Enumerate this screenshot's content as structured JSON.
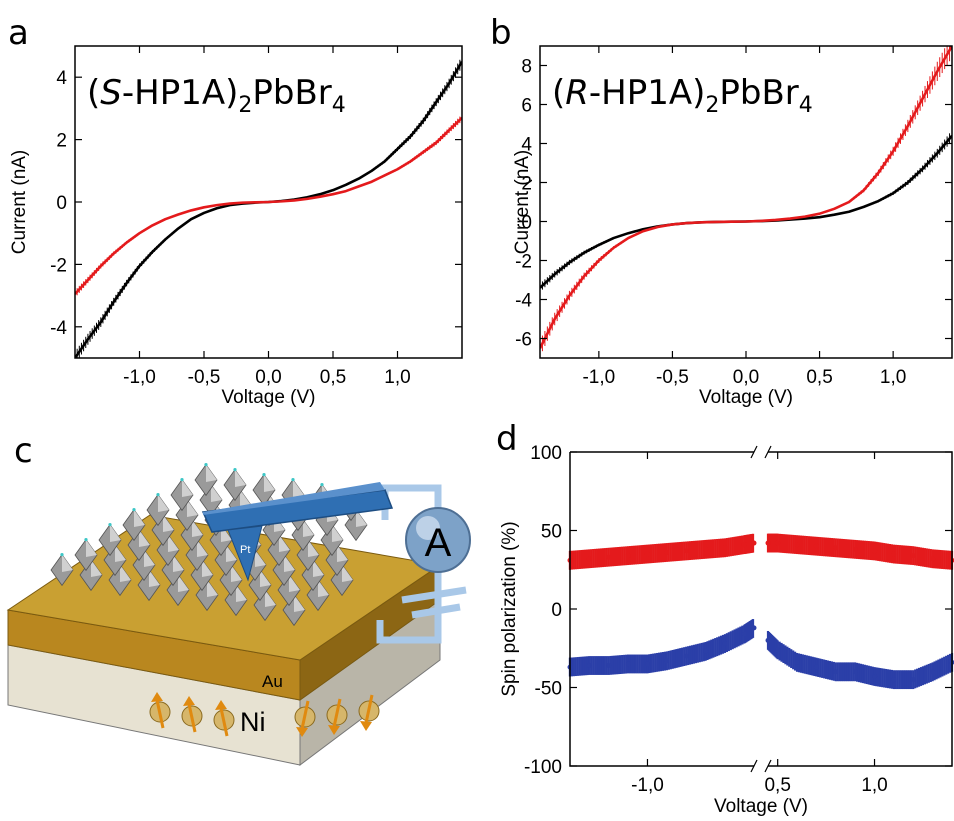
{
  "panels": {
    "a": "a",
    "b": "b",
    "c": "c",
    "d": "d"
  },
  "diagram": {
    "tip_label": "Pt",
    "meter_label": "A",
    "gold_label": "Au",
    "nickel_label": "Ni",
    "colors": {
      "gold": "#c9a032",
      "nickel": "#e7e2d2",
      "cantilever": "#2f6fb3",
      "wire": "#a9c8e8",
      "crystal": "#9a9a9a"
    }
  },
  "chart_data": [
    {
      "id": "a",
      "type": "line",
      "formula": {
        "prefix": "(",
        "italic": "S",
        "main": "-HP1A)",
        "sub1": "2",
        "mid": "PbBr",
        "sub2": "4"
      },
      "xlabel": "Voltage (V)",
      "ylabel": "Current (nA)",
      "xlim": [
        -1.5,
        1.5
      ],
      "ylim": [
        -5,
        5
      ],
      "xticks": [
        -1.0,
        -0.5,
        0.0,
        0.5,
        1.0
      ],
      "xtick_labels": [
        "-1,0",
        "-0,5",
        "0,0",
        "0,5",
        "1,0"
      ],
      "yticks": [
        -4,
        -2,
        0,
        2,
        4
      ],
      "ytick_labels": [
        "-4",
        "-2",
        "0",
        "2",
        "4"
      ],
      "error_bars": true,
      "series": [
        {
          "color": "#000000",
          "x": [
            -1.5,
            -1.4,
            -1.3,
            -1.2,
            -1.1,
            -1.0,
            -0.9,
            -0.8,
            -0.7,
            -0.6,
            -0.5,
            -0.4,
            -0.3,
            -0.2,
            -0.1,
            0.0,
            0.1,
            0.2,
            0.3,
            0.4,
            0.5,
            0.6,
            0.7,
            0.8,
            0.9,
            1.0,
            1.1,
            1.2,
            1.3,
            1.4,
            1.5
          ],
          "y": [
            -5.0,
            -4.4,
            -3.85,
            -3.2,
            -2.6,
            -2.05,
            -1.6,
            -1.2,
            -0.85,
            -0.55,
            -0.35,
            -0.2,
            -0.1,
            -0.05,
            -0.02,
            0.0,
            0.03,
            0.08,
            0.15,
            0.25,
            0.38,
            0.55,
            0.75,
            1.0,
            1.3,
            1.7,
            2.1,
            2.6,
            3.2,
            3.8,
            4.5
          ]
        },
        {
          "color": "#e41a1c",
          "x": [
            -1.5,
            -1.4,
            -1.3,
            -1.2,
            -1.1,
            -1.0,
            -0.9,
            -0.8,
            -0.7,
            -0.6,
            -0.5,
            -0.4,
            -0.3,
            -0.2,
            -0.1,
            0.0,
            0.1,
            0.2,
            0.3,
            0.4,
            0.5,
            0.6,
            0.7,
            0.8,
            0.9,
            1.0,
            1.1,
            1.2,
            1.3,
            1.4,
            1.5
          ],
          "y": [
            -2.95,
            -2.5,
            -2.05,
            -1.65,
            -1.3,
            -1.0,
            -0.75,
            -0.55,
            -0.4,
            -0.27,
            -0.17,
            -0.1,
            -0.05,
            -0.02,
            -0.01,
            0.0,
            0.02,
            0.05,
            0.1,
            0.17,
            0.25,
            0.35,
            0.5,
            0.65,
            0.85,
            1.05,
            1.3,
            1.6,
            1.9,
            2.3,
            2.7
          ]
        }
      ]
    },
    {
      "id": "b",
      "type": "line",
      "formula": {
        "prefix": "(",
        "italic": "R",
        "main": "-HP1A)",
        "sub1": "2",
        "mid": "PbBr",
        "sub2": "4"
      },
      "xlabel": "Voltage (V)",
      "ylabel": "Current (nA)",
      "xlim": [
        -1.4,
        1.4
      ],
      "ylim": [
        -7,
        9
      ],
      "xticks": [
        -1.0,
        -0.5,
        0.0,
        0.5,
        1.0
      ],
      "xtick_labels": [
        "-1,0",
        "-0,5",
        "0,0",
        "0,5",
        "1,0"
      ],
      "yticks": [
        -6,
        -4,
        -2,
        0,
        2,
        4,
        6,
        8
      ],
      "ytick_labels": [
        "-6",
        "-4",
        "-2",
        "0",
        "2",
        "4",
        "6",
        "8"
      ],
      "error_bars": true,
      "series": [
        {
          "color": "#000000",
          "x": [
            -1.4,
            -1.3,
            -1.2,
            -1.1,
            -1.0,
            -0.9,
            -0.8,
            -0.7,
            -0.6,
            -0.5,
            -0.4,
            -0.3,
            -0.2,
            -0.1,
            0.0,
            0.1,
            0.2,
            0.3,
            0.4,
            0.5,
            0.6,
            0.7,
            0.8,
            0.9,
            1.0,
            1.1,
            1.2,
            1.3,
            1.4
          ],
          "y": [
            -3.4,
            -2.7,
            -2.1,
            -1.6,
            -1.2,
            -0.85,
            -0.6,
            -0.4,
            -0.25,
            -0.15,
            -0.08,
            -0.04,
            -0.02,
            -0.01,
            0.0,
            0.02,
            0.05,
            0.1,
            0.15,
            0.22,
            0.35,
            0.5,
            0.75,
            1.05,
            1.45,
            2.0,
            2.7,
            3.5,
            4.4
          ]
        },
        {
          "color": "#e41a1c",
          "x": [
            -1.4,
            -1.3,
            -1.2,
            -1.1,
            -1.0,
            -0.9,
            -0.8,
            -0.7,
            -0.6,
            -0.5,
            -0.4,
            -0.3,
            -0.2,
            -0.1,
            0.0,
            0.1,
            0.2,
            0.3,
            0.4,
            0.5,
            0.6,
            0.7,
            0.8,
            0.9,
            1.0,
            1.1,
            1.2,
            1.3,
            1.4
          ],
          "y": [
            -6.5,
            -5.0,
            -3.8,
            -2.8,
            -2.0,
            -1.35,
            -0.85,
            -0.5,
            -0.28,
            -0.15,
            -0.08,
            -0.04,
            -0.02,
            -0.01,
            0.0,
            0.03,
            0.08,
            0.15,
            0.25,
            0.4,
            0.65,
            1.0,
            1.6,
            2.5,
            3.6,
            4.9,
            6.3,
            7.7,
            9.0
          ]
        }
      ]
    },
    {
      "id": "d",
      "type": "scatter",
      "xlabel": "Voltage (V)",
      "ylabel": "Spin polarization (%)",
      "ylim": [
        -100,
        100
      ],
      "yticks": [
        -100,
        -50,
        0,
        50,
        100
      ],
      "ytick_labels": [
        "-100",
        "-50",
        "0",
        "50",
        "100"
      ],
      "axis_break": true,
      "segments": [
        {
          "xlim": [
            -1.4,
            -0.45
          ],
          "xticks": [
            -1.0
          ],
          "xtick_labels": [
            "-1,0"
          ]
        },
        {
          "xlim": [
            0.45,
            1.4
          ],
          "xticks": [
            0.5,
            1.0
          ],
          "xtick_labels": [
            "0,5",
            "1,0"
          ]
        }
      ],
      "error_bars": true,
      "series": [
        {
          "color": "#e41a1c",
          "x": [
            -1.4,
            -1.3,
            -1.2,
            -1.1,
            -1.0,
            -0.9,
            -0.8,
            -0.7,
            -0.6,
            -0.5,
            -0.45,
            0.45,
            0.5,
            0.6,
            0.7,
            0.8,
            0.9,
            1.0,
            1.1,
            1.2,
            1.3,
            1.4
          ],
          "y": [
            31,
            32,
            33,
            34,
            35,
            36,
            37,
            38,
            39,
            41,
            42,
            42,
            42,
            41,
            40,
            39,
            38,
            37,
            35,
            34,
            32,
            31
          ]
        },
        {
          "color": "#2b3fa8",
          "x": [
            -1.4,
            -1.3,
            -1.2,
            -1.1,
            -1.0,
            -0.9,
            -0.8,
            -0.7,
            -0.6,
            -0.5,
            -0.45,
            0.45,
            0.5,
            0.6,
            0.7,
            0.8,
            0.9,
            1.0,
            1.1,
            1.2,
            1.3,
            1.4
          ],
          "y": [
            -37,
            -36,
            -36,
            -35,
            -35,
            -33,
            -30,
            -27,
            -22,
            -16,
            -12,
            -20,
            -26,
            -34,
            -37,
            -40,
            -40,
            -43,
            -45,
            -45,
            -40,
            -34
          ]
        }
      ]
    }
  ]
}
